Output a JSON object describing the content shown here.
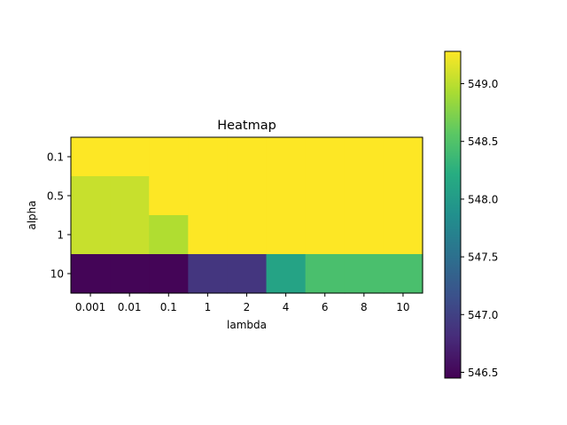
{
  "chart_data": {
    "type": "heatmap",
    "title": "Heatmap",
    "xlabel": "lambda",
    "ylabel": "alpha",
    "x_categories": [
      "0.001",
      "0.01",
      "0.1",
      "1",
      "2",
      "4",
      "6",
      "8",
      "10"
    ],
    "y_categories": [
      "0.1",
      "0.5",
      "1",
      "10"
    ],
    "values": [
      [
        549.28,
        549.28,
        549.28,
        549.28,
        549.28,
        549.28,
        549.28,
        549.28,
        549.28
      ],
      [
        549.05,
        549.05,
        549.28,
        549.28,
        549.28,
        549.28,
        549.28,
        549.28,
        549.28
      ],
      [
        549.05,
        549.05,
        548.95,
        549.28,
        549.28,
        549.28,
        549.28,
        549.28,
        549.28
      ],
      [
        546.48,
        546.48,
        546.48,
        546.9,
        546.9,
        548.1,
        548.45,
        548.45,
        548.45
      ]
    ],
    "colorbar": {
      "vmin": 546.45,
      "vmax": 549.28,
      "ticks": [
        "546.5",
        "547.0",
        "547.5",
        "548.0",
        "548.5",
        "549.0"
      ],
      "colormap": "viridis"
    },
    "grid": false
  }
}
